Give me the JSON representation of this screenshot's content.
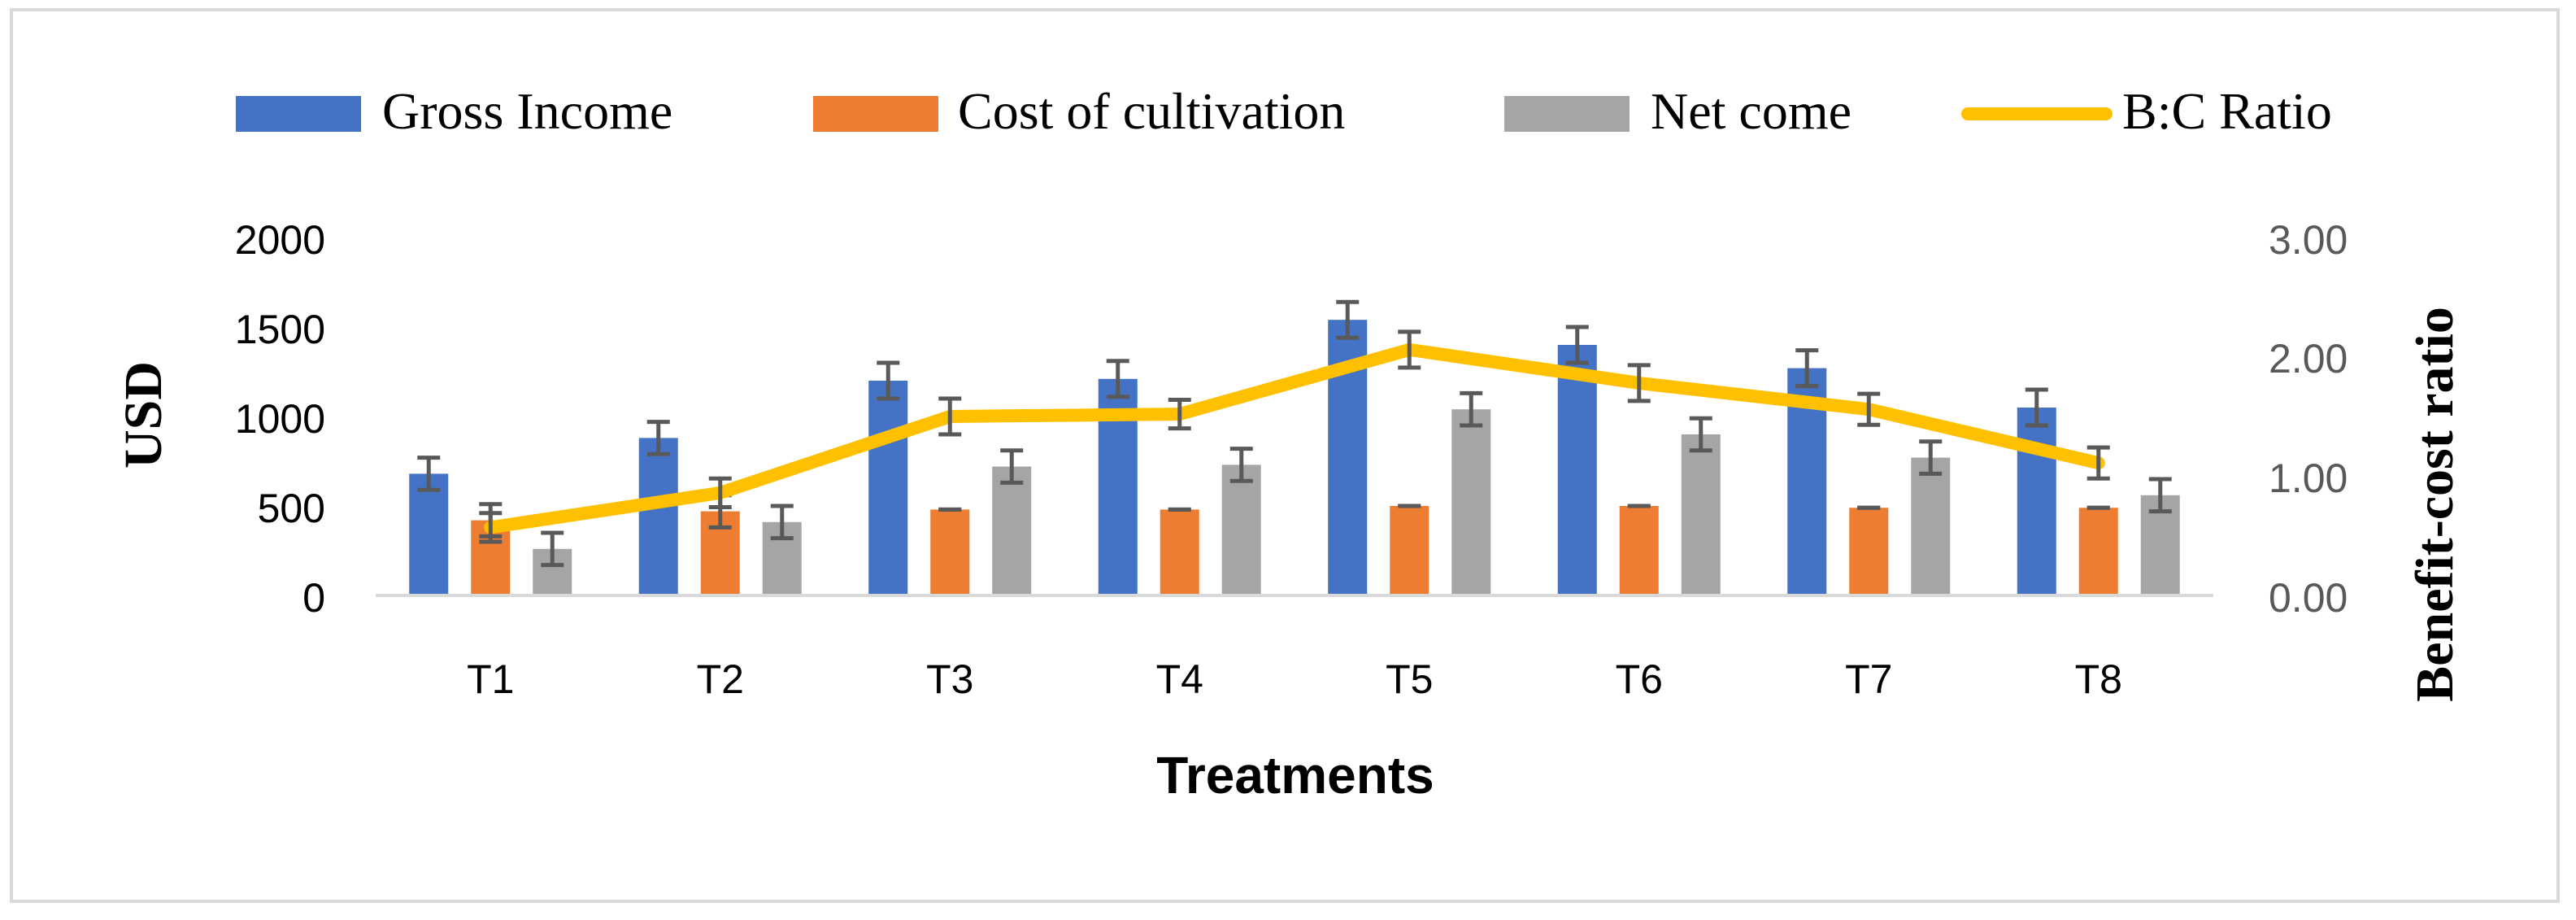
{
  "chart_data": {
    "type": "bar",
    "title": "",
    "categories": [
      "T1",
      "T2",
      "T3",
      "T4",
      "T5",
      "T6",
      "T7",
      "T8"
    ],
    "xlabel": "Treatments",
    "ylabel": "USD",
    "y2label": "Benefit-cost ratio",
    "ylim": [
      0,
      2000
    ],
    "y2lim": [
      0,
      3
    ],
    "yticks": [
      "0",
      "500",
      "1000",
      "1500",
      "2000"
    ],
    "y2ticks": [
      "0.00",
      "1.00",
      "2.00",
      "3.00"
    ],
    "legend_position": "top",
    "series": [
      {
        "name": "Gross Income",
        "kind": "bar",
        "color": "#4472c4",
        "values": [
          680,
          880,
          1200,
          1210,
          1540,
          1400,
          1270,
          1050
        ],
        "errors": [
          90,
          90,
          100,
          100,
          100,
          100,
          100,
          100
        ]
      },
      {
        "name": "Cost of cultivation",
        "kind": "bar",
        "color": "#ed7d31",
        "values": [
          420,
          470,
          480,
          480,
          500,
          500,
          490,
          490
        ],
        "errors": [
          90,
          90,
          0,
          0,
          0,
          0,
          0,
          0
        ]
      },
      {
        "name": "Net come",
        "kind": "bar",
        "color": "#a5a5a5",
        "values": [
          260,
          410,
          720,
          730,
          1040,
          900,
          770,
          560
        ],
        "errors": [
          90,
          90,
          90,
          90,
          90,
          90,
          90,
          90
        ]
      },
      {
        "name": "B:C Ratio",
        "kind": "line",
        "axis": "right",
        "color": "#ffc000",
        "values": [
          0.57,
          0.86,
          1.5,
          1.52,
          2.06,
          1.78,
          1.56,
          1.11
        ],
        "errors": [
          0.12,
          0.12,
          0.15,
          0.12,
          0.15,
          0.15,
          0.13,
          0.13
        ]
      }
    ]
  }
}
